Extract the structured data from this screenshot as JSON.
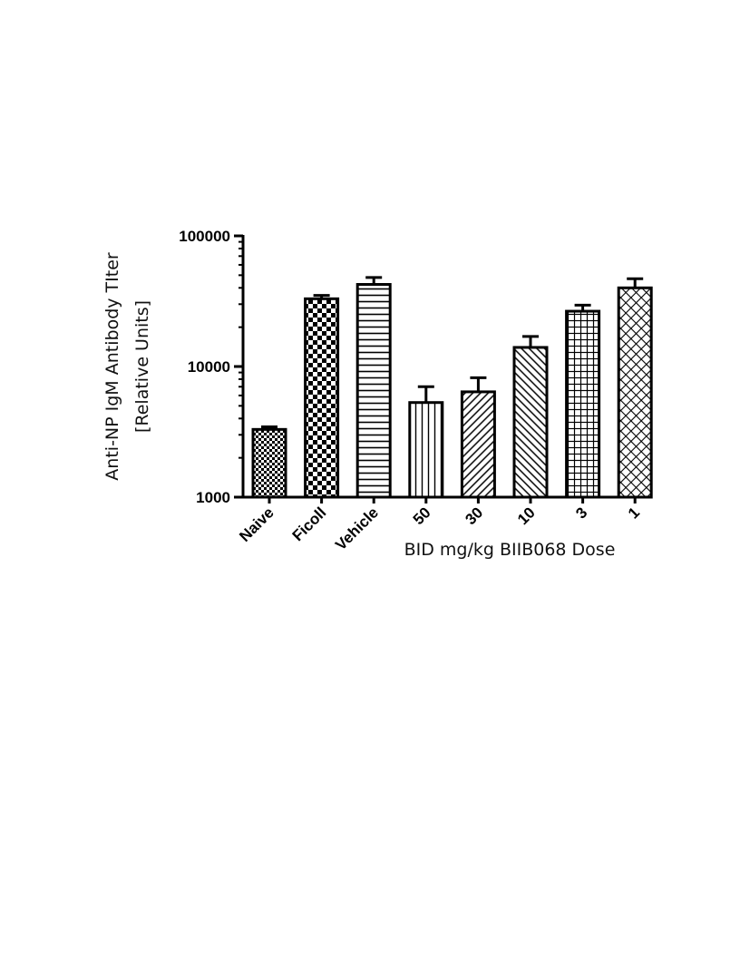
{
  "chart_data": {
    "type": "bar",
    "ylabel_line1": "Anti-NP IgM Antibody TIter",
    "ylabel_line2": "[Relative Units]",
    "xlabel": "BID mg/kg BIIB068 Dose",
    "yscale": "log",
    "ylim": [
      1000,
      100000
    ],
    "yticks": [
      1000,
      10000,
      100000
    ],
    "ytick_labels": [
      "1000",
      "10000",
      "100000"
    ],
    "categories": [
      "Naive",
      "Ficoll",
      "Vehicle",
      "50",
      "30",
      "10",
      "3",
      "1"
    ],
    "values": [
      3300,
      33000,
      42500,
      5300,
      6400,
      14000,
      26500,
      40000
    ],
    "error_upper": [
      3450,
      35000,
      48000,
      7000,
      8200,
      17000,
      29500,
      47000
    ],
    "patterns": [
      "fine-checker",
      "checker",
      "horizontal",
      "vertical",
      "diag-right",
      "diag-left",
      "grid",
      "crosshatch"
    ]
  }
}
